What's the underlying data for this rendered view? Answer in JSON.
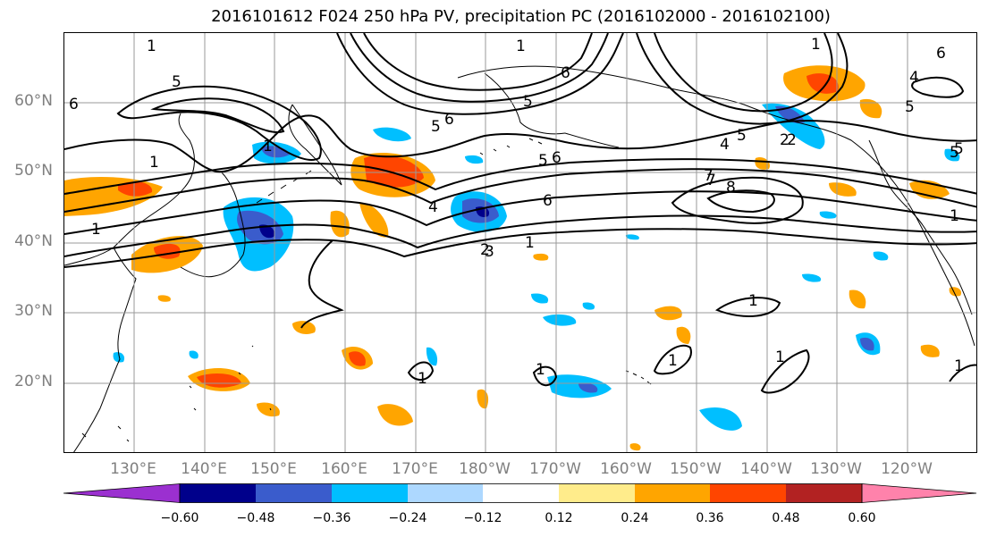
{
  "title": "2016101612 F024 250 hPa PV, precipitation PC (2016102000 - 2016102100)",
  "lat_labels": [
    "60°N",
    "50°N",
    "40°N",
    "30°N",
    "20°N"
  ],
  "lon_labels": [
    "130°E",
    "140°E",
    "150°E",
    "160°E",
    "170°E",
    "180°W",
    "170°W",
    "160°W",
    "150°W",
    "140°W",
    "130°W",
    "120°W"
  ],
  "map_extent": {
    "lon_min": 120,
    "lon_max": 250,
    "lat_min": 10,
    "lat_max": 70
  },
  "grid": true,
  "pv_contour_labels": [
    "1",
    "5",
    "6",
    "1",
    "5",
    "6",
    "1",
    "5",
    "6",
    "6",
    "4",
    "3",
    "1",
    "5",
    "6",
    "7",
    "5",
    "4",
    "5",
    "2",
    "7",
    "8",
    "2",
    "6",
    "5",
    "4",
    "1",
    "1",
    "2",
    "1",
    "1",
    "1",
    "1",
    "1",
    "1",
    "1",
    "5",
    "1"
  ],
  "colorbar": {
    "ticks": [
      "−0.60",
      "−0.48",
      "−0.36",
      "−0.24",
      "−0.12",
      "0.12",
      "0.24",
      "0.36",
      "0.48",
      "0.60"
    ],
    "colors": [
      "#9b30d0",
      "#00008b",
      "#3a5ccc",
      "#00bfff",
      "#add8ff",
      "#ffffff",
      "#ffec8b",
      "#ffa500",
      "#ff4500",
      "#b22222",
      "#ff82ab"
    ],
    "extend": "both"
  },
  "colors": {
    "grid": "#9a9a9a",
    "label_gray": "#7f7f7f"
  }
}
